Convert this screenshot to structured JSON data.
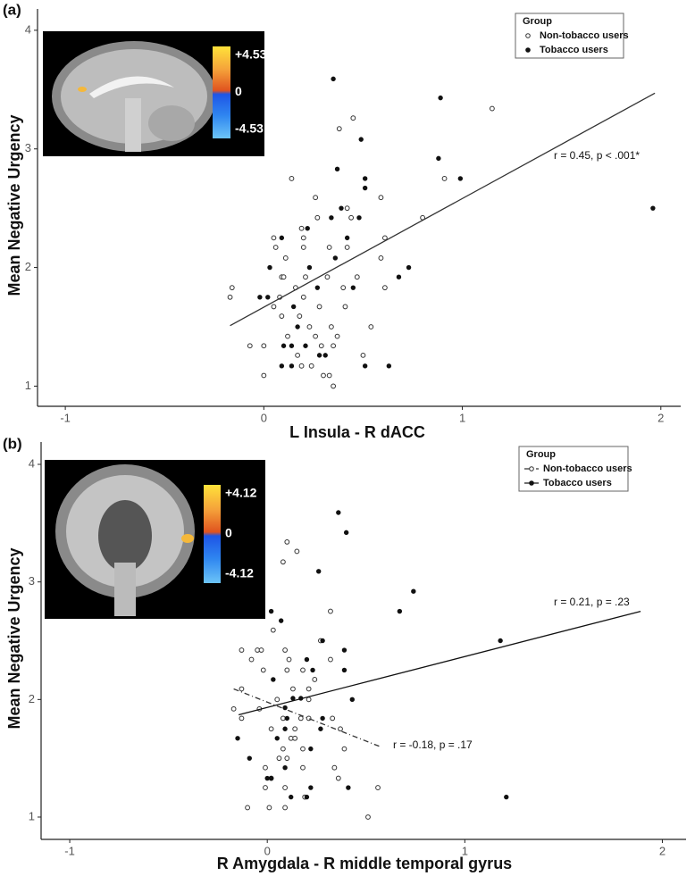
{
  "chart_data": [
    {
      "type": "scatter",
      "panel": "(a)",
      "x_label": "L Insula - R dACC",
      "y_label": "Mean Negative Urgency",
      "xlim": [
        -1.14,
        2.1
      ],
      "ylim": [
        0.83,
        4.18
      ],
      "xticks": [
        -1,
        0,
        1,
        2
      ],
      "yticks": [
        1,
        2,
        3,
        4
      ],
      "legend_title": "Group",
      "legend_loc": "upper right",
      "series": [
        {
          "name": "Non-tobacco users",
          "color": "#333333",
          "marker": "open",
          "x": [
            1.15,
            0.45,
            0.38,
            0.14,
            0.91,
            0.26,
            0.59,
            0.42,
            0.44,
            0.8,
            0.27,
            0.19,
            0.05,
            0.2,
            0.61,
            0.06,
            0.2,
            0.33,
            0.42,
            0.11,
            0.59,
            0.32,
            0.09,
            0.1,
            0.21,
            0.47,
            -0.16,
            0.16,
            0.4,
            0.61,
            -0.17,
            0.08,
            0.2,
            0.05,
            0.28,
            0.41,
            0.09,
            0.18,
            0.23,
            0.34,
            0.54,
            0.12,
            0.37,
            0.26,
            -0.07,
            0.0,
            0.29,
            0.35,
            0.17,
            0.5,
            0.19,
            0.24,
            0.33,
            0.0,
            0.3,
            0.35
          ],
          "values": [
            3.34,
            3.26,
            3.17,
            2.75,
            2.75,
            2.59,
            2.59,
            2.5,
            2.42,
            2.42,
            2.42,
            2.33,
            2.25,
            2.25,
            2.25,
            2.17,
            2.17,
            2.17,
            2.17,
            2.08,
            2.08,
            1.92,
            1.92,
            1.92,
            1.92,
            1.92,
            1.83,
            1.83,
            1.83,
            1.83,
            1.75,
            1.75,
            1.75,
            1.67,
            1.67,
            1.67,
            1.59,
            1.59,
            1.5,
            1.5,
            1.5,
            1.42,
            1.42,
            1.42,
            1.34,
            1.34,
            1.34,
            1.34,
            1.26,
            1.26,
            1.17,
            1.17,
            1.09,
            1.09,
            1.09,
            1.0
          ]
        },
        {
          "name": "Tobacco users",
          "color": "#111111",
          "marker": "filled",
          "x": [
            0.35,
            0.89,
            0.49,
            0.88,
            0.37,
            0.99,
            0.51,
            0.51,
            1.96,
            0.39,
            0.34,
            0.48,
            0.22,
            0.09,
            0.42,
            0.03,
            0.23,
            0.73,
            0.36,
            0.68,
            0.27,
            0.45,
            -0.02,
            0.02,
            0.15,
            0.17,
            0.1,
            0.21,
            0.14,
            0.28,
            0.31,
            0.09,
            0.14,
            0.51,
            0.63
          ],
          "values": [
            3.59,
            3.43,
            3.08,
            2.92,
            2.83,
            2.75,
            2.75,
            2.67,
            2.5,
            2.5,
            2.42,
            2.42,
            2.33,
            2.25,
            2.25,
            2.0,
            2.0,
            2.0,
            2.08,
            1.92,
            1.83,
            1.83,
            1.75,
            1.75,
            1.67,
            1.5,
            1.34,
            1.34,
            1.34,
            1.26,
            1.26,
            1.17,
            1.17,
            1.17,
            1.17
          ]
        }
      ],
      "fit": {
        "x": [
          -0.17,
          1.97
        ],
        "values": [
          1.51,
          3.47
        ],
        "color": "#333333"
      },
      "annotations": [
        "r = 0.45, p < .001*"
      ],
      "colorbar": {
        "ticks": [
          {
            "value": 4.53,
            "label": "+4.53"
          },
          0,
          {
            "value": -4.53,
            "label": "-4.53"
          }
        ]
      }
    },
    {
      "type": "scatter",
      "panel": "(b)",
      "x_label": "R Amygdala - R middle temporal gyrus",
      "y_label": "Mean Negative Urgency",
      "xlim": [
        -1.145,
        2.12
      ],
      "ylim": [
        0.81,
        4.19
      ],
      "xticks": [
        -1,
        0,
        1,
        2
      ],
      "yticks": [
        1,
        2,
        3,
        4
      ],
      "legend_title": "Group",
      "legend_loc": "upper right",
      "series": [
        {
          "name": "Non-tobacco users",
          "color": "#333333",
          "marker": "open",
          "x": [
            0.1,
            0.08,
            0.15,
            0.32,
            0.03,
            0.27,
            -0.13,
            -0.05,
            -0.03,
            0.09,
            0.11,
            0.32,
            -0.08,
            -0.02,
            0.1,
            0.18,
            0.24,
            -0.13,
            0.21,
            0.13,
            0.05,
            0.21,
            -0.13,
            -0.04,
            0.08,
            0.17,
            0.21,
            0.33,
            -0.17,
            0.02,
            0.14,
            0.37,
            0.12,
            0.14,
            0.08,
            0.18,
            0.39,
            0.06,
            0.1,
            -0.01,
            0.02,
            0.18,
            0.34,
            -0.01,
            0.09,
            0.36,
            0.56,
            0.19,
            -0.1,
            0.01,
            0.09,
            0.51
          ],
          "values": [
            3.34,
            3.17,
            3.26,
            2.75,
            2.59,
            2.5,
            2.42,
            2.42,
            2.42,
            2.42,
            2.34,
            2.34,
            2.34,
            2.25,
            2.25,
            2.25,
            2.17,
            2.09,
            2.09,
            2.09,
            2.0,
            2.0,
            1.84,
            1.92,
            1.84,
            1.84,
            1.84,
            1.84,
            1.92,
            1.75,
            1.75,
            1.75,
            1.67,
            1.67,
            1.58,
            1.58,
            1.58,
            1.5,
            1.5,
            1.42,
            1.33,
            1.42,
            1.42,
            1.25,
            1.25,
            1.33,
            1.25,
            1.17,
            1.08,
            1.08,
            1.08,
            1.0
          ],
          "fit": {
            "x": [
              -0.17,
              0.57
            ],
            "values": [
              2.09,
              1.6
            ],
            "dash": "6 3 1 3"
          }
        },
        {
          "name": "Tobacco users",
          "color": "#111111",
          "marker": "filled",
          "x": [
            0.36,
            0.4,
            0.26,
            0.74,
            0.67,
            0.02,
            0.07,
            1.18,
            0.28,
            0.39,
            0.2,
            0.39,
            0.23,
            0.03,
            0.13,
            0.17,
            0.43,
            0.09,
            0.1,
            0.28,
            0.09,
            0.27,
            -0.15,
            0.05,
            0.22,
            -0.09,
            0.09,
            0.0,
            0.02,
            0.22,
            0.41,
            0.12,
            0.2,
            1.21
          ],
          "values": [
            3.59,
            3.42,
            3.09,
            2.92,
            2.75,
            2.75,
            2.67,
            2.5,
            2.5,
            2.42,
            2.34,
            2.25,
            2.25,
            2.17,
            2.01,
            2.01,
            2.0,
            1.93,
            1.84,
            1.84,
            1.75,
            1.75,
            1.67,
            1.67,
            1.58,
            1.5,
            1.42,
            1.33,
            1.33,
            1.25,
            1.25,
            1.17,
            1.17,
            1.17
          ],
          "fit": {
            "x": [
              -0.145,
              1.89
            ],
            "values": [
              1.87,
              2.75
            ],
            "dash": ""
          }
        }
      ],
      "annotations": [
        "r = 0.21, p = .23",
        "r = -0.18, p = .17"
      ],
      "colorbar": {
        "ticks": [
          {
            "value": 4.12,
            "label": "+4.12"
          },
          0,
          {
            "value": -4.12,
            "label": "-4.12"
          }
        ]
      }
    }
  ]
}
